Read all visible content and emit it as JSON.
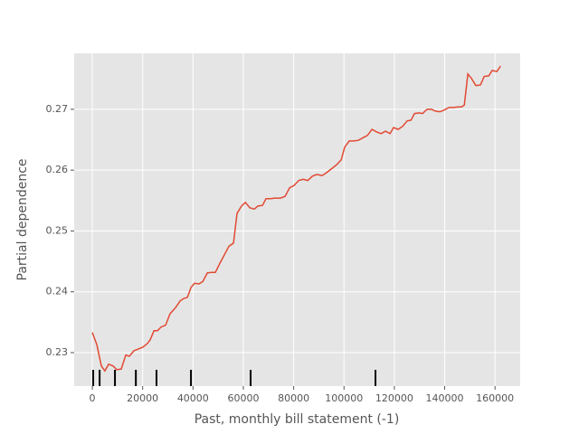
{
  "chart_data": {
    "type": "line",
    "x_label": "Past, monthly bill statement (-1)",
    "y_label": "Partial dependence",
    "xlim": [
      -7200,
      170000
    ],
    "ylim": [
      0.2245,
      0.2792
    ],
    "xticks": [
      0,
      20000,
      40000,
      60000,
      80000,
      100000,
      120000,
      140000,
      160000
    ],
    "yticks": [
      0.23,
      0.24,
      0.25,
      0.26,
      0.27
    ],
    "grid": true,
    "background": "#e5e5e5",
    "series": [
      {
        "color": "#e24a33",
        "x": [
          0,
          1800,
          3600,
          5000,
          6500,
          8300,
          9700,
          11500,
          13300,
          14700,
          16500,
          18300,
          20100,
          21900,
          23000,
          24500,
          25900,
          27300,
          29100,
          30900,
          33100,
          34900,
          36300,
          37800,
          39200,
          40600,
          42400,
          43900,
          45700,
          47500,
          48900,
          50700,
          52500,
          54300,
          56100,
          57500,
          59300,
          60800,
          62600,
          64400,
          65800,
          67600,
          69000,
          70800,
          72600,
          74800,
          76600,
          78400,
          80200,
          82000,
          83800,
          85600,
          87400,
          89200,
          91300,
          93100,
          95300,
          97100,
          98900,
          100300,
          102100,
          103900,
          105700,
          107900,
          109300,
          111100,
          112900,
          114700,
          116500,
          118300,
          119700,
          121500,
          123300,
          125100,
          126600,
          128000,
          129800,
          131200,
          133000,
          134800,
          136300,
          138100,
          139900,
          141700,
          143500,
          145300,
          146700,
          147800,
          149200,
          150600,
          152400,
          154200,
          155700,
          157500,
          158900,
          160700,
          162200
        ],
        "values": [
          0.2333,
          0.2313,
          0.2278,
          0.227,
          0.2281,
          0.2278,
          0.2272,
          0.2273,
          0.2296,
          0.2294,
          0.2303,
          0.2306,
          0.2309,
          0.2315,
          0.2321,
          0.2336,
          0.2336,
          0.2342,
          0.2345,
          0.2364,
          0.2374,
          0.2385,
          0.2389,
          0.2391,
          0.2407,
          0.2414,
          0.2413,
          0.2417,
          0.2431,
          0.2432,
          0.2432,
          0.2447,
          0.2461,
          0.2475,
          0.248,
          0.2529,
          0.2541,
          0.2547,
          0.2538,
          0.2536,
          0.2541,
          0.2542,
          0.2553,
          0.2553,
          0.2554,
          0.2554,
          0.2557,
          0.2571,
          0.2575,
          0.2583,
          0.2585,
          0.2583,
          0.259,
          0.2593,
          0.2591,
          0.2596,
          0.2603,
          0.2609,
          0.2617,
          0.2638,
          0.2648,
          0.2648,
          0.2649,
          0.2654,
          0.2657,
          0.2667,
          0.2663,
          0.266,
          0.2664,
          0.266,
          0.267,
          0.2667,
          0.2672,
          0.2681,
          0.2682,
          0.2693,
          0.2694,
          0.2693,
          0.27,
          0.27,
          0.2697,
          0.2696,
          0.2699,
          0.2703,
          0.2703,
          0.2704,
          0.2704,
          0.2707,
          0.2758,
          0.2751,
          0.2739,
          0.274,
          0.2754,
          0.2755,
          0.2764,
          0.2762,
          0.2771
        ]
      }
    ],
    "rug": [
      360,
      2900,
      9000,
      17300,
      25500,
      39200,
      62900,
      112500
    ]
  }
}
